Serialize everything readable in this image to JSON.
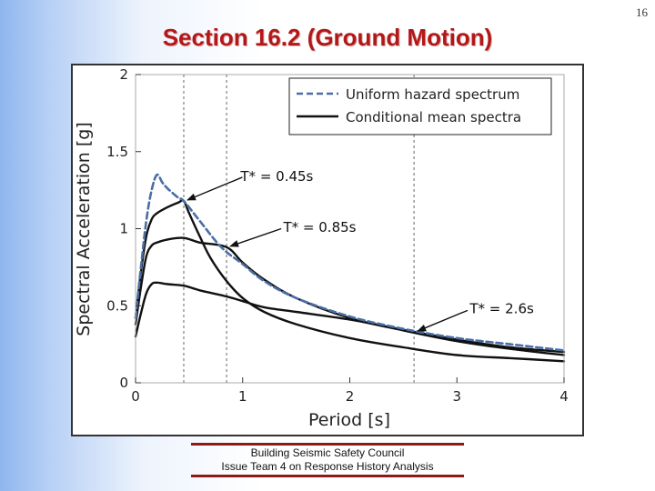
{
  "slide": {
    "number": "16",
    "title": "Section 16.2 (Ground Motion)"
  },
  "footer": {
    "line1": "Building Seismic Safety Council",
    "line2": "Issue Team 4 on Response History Analysis"
  },
  "colors": {
    "uhs": "#4a6fa5",
    "cms": "#111111",
    "title": "#b31818",
    "rule": "#8b1a1a"
  },
  "chart_data": {
    "type": "line",
    "xlabel": "Period [s]",
    "ylabel": "Spectral Acceleration [g]",
    "xlim": [
      0,
      4
    ],
    "ylim": [
      0,
      2
    ],
    "xticks": [
      0,
      1,
      2,
      3,
      4
    ],
    "yticks": [
      0,
      0.5,
      1,
      1.5,
      2
    ],
    "grid": false,
    "legend_position": "top-right",
    "series": [
      {
        "name": "Uniform hazard spectrum",
        "style": "dashed",
        "points": [
          [
            0.0,
            0.42
          ],
          [
            0.05,
            0.75
          ],
          [
            0.1,
            1.05
          ],
          [
            0.15,
            1.25
          ],
          [
            0.2,
            1.35
          ],
          [
            0.25,
            1.3
          ],
          [
            0.3,
            1.26
          ],
          [
            0.4,
            1.2
          ],
          [
            0.45,
            1.18
          ],
          [
            0.6,
            1.05
          ],
          [
            0.8,
            0.88
          ],
          [
            1.0,
            0.77
          ],
          [
            1.2,
            0.66
          ],
          [
            1.5,
            0.55
          ],
          [
            2.0,
            0.43
          ],
          [
            2.5,
            0.35
          ],
          [
            3.0,
            0.29
          ],
          [
            3.5,
            0.25
          ],
          [
            4.0,
            0.21
          ]
        ]
      },
      {
        "name": "Conditional mean spectra",
        "style": "solid",
        "points": [
          [
            0.0,
            0.42
          ],
          [
            0.05,
            0.72
          ],
          [
            0.1,
            0.95
          ],
          [
            0.15,
            1.06
          ],
          [
            0.2,
            1.1
          ],
          [
            0.3,
            1.14
          ],
          [
            0.4,
            1.17
          ],
          [
            0.45,
            1.18
          ],
          [
            0.5,
            1.1
          ],
          [
            0.6,
            0.95
          ],
          [
            0.7,
            0.81
          ],
          [
            0.85,
            0.66
          ],
          [
            1.0,
            0.55
          ],
          [
            1.2,
            0.46
          ],
          [
            1.5,
            0.38
          ],
          [
            2.0,
            0.29
          ],
          [
            2.5,
            0.23
          ],
          [
            3.0,
            0.18
          ],
          [
            3.5,
            0.16
          ],
          [
            4.0,
            0.14
          ]
        ]
      },
      {
        "name": "",
        "style": "solid",
        "points": [
          [
            0.0,
            0.38
          ],
          [
            0.05,
            0.62
          ],
          [
            0.1,
            0.82
          ],
          [
            0.15,
            0.89
          ],
          [
            0.2,
            0.91
          ],
          [
            0.3,
            0.93
          ],
          [
            0.45,
            0.94
          ],
          [
            0.6,
            0.91
          ],
          [
            0.85,
            0.88
          ],
          [
            1.0,
            0.78
          ],
          [
            1.2,
            0.67
          ],
          [
            1.5,
            0.55
          ],
          [
            2.0,
            0.42
          ],
          [
            2.5,
            0.34
          ],
          [
            3.0,
            0.27
          ],
          [
            3.5,
            0.22
          ],
          [
            4.0,
            0.18
          ]
        ]
      },
      {
        "name": "",
        "style": "solid",
        "points": [
          [
            0.0,
            0.3
          ],
          [
            0.05,
            0.45
          ],
          [
            0.1,
            0.58
          ],
          [
            0.15,
            0.64
          ],
          [
            0.2,
            0.65
          ],
          [
            0.3,
            0.64
          ],
          [
            0.45,
            0.63
          ],
          [
            0.6,
            0.6
          ],
          [
            0.85,
            0.56
          ],
          [
            1.0,
            0.53
          ],
          [
            1.2,
            0.49
          ],
          [
            1.5,
            0.46
          ],
          [
            2.0,
            0.41
          ],
          [
            2.6,
            0.33
          ],
          [
            3.0,
            0.28
          ],
          [
            3.5,
            0.23
          ],
          [
            4.0,
            0.2
          ]
        ]
      }
    ],
    "vlines": [
      0.45,
      0.85,
      2.6
    ],
    "annotations": [
      {
        "text": "T* = 0.45s",
        "target": [
          0.45,
          1.18
        ]
      },
      {
        "text": "T* = 0.85s",
        "target": [
          0.85,
          0.88
        ]
      },
      {
        "text": "T* = 2.6s",
        "target": [
          2.6,
          0.33
        ]
      }
    ]
  }
}
